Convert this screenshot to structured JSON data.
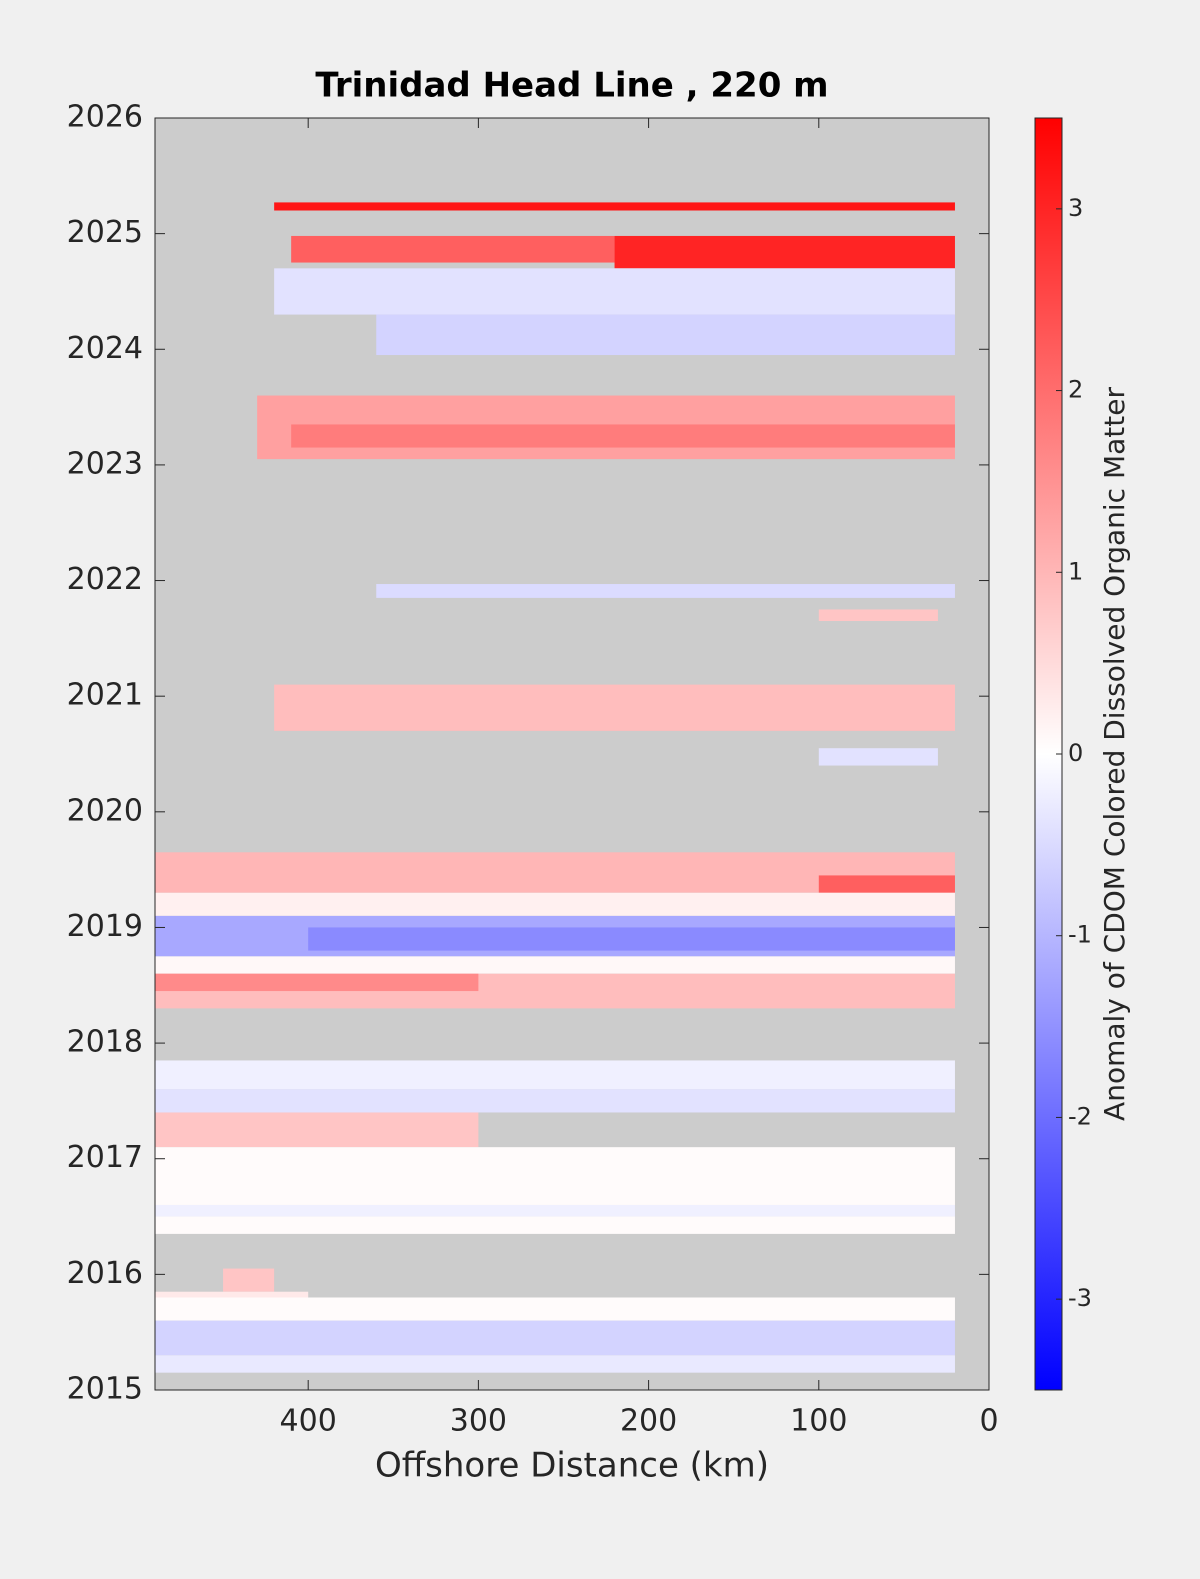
{
  "chart_data": {
    "type": "contour",
    "title": "Trinidad Head Line , 220 m",
    "x_label": "Offshore Distance (km)",
    "colorbar_label": "Anomaly of CDOM Colored Dissolved Organic Matter",
    "xlim": [
      490,
      0
    ],
    "xticks": [
      400,
      300,
      200,
      100,
      0
    ],
    "ylim": [
      2015,
      2026
    ],
    "yticks": [
      2015,
      2016,
      2017,
      2018,
      2019,
      2020,
      2021,
      2022,
      2023,
      2024,
      2025,
      2026
    ],
    "clim": [
      -3.5,
      3.5
    ],
    "cticks": [
      -3,
      -2,
      -1,
      0,
      1,
      2,
      3
    ],
    "colormap": [
      "#0000ff",
      "#ffffff",
      "#ff0000"
    ],
    "nan_color": "#cccccc",
    "patches": [
      {
        "x": [
          420,
          20
        ],
        "y": [
          2025.2,
          2025.27
        ],
        "value": 3.2
      },
      {
        "x": [
          410,
          220
        ],
        "y": [
          2024.75,
          2024.98
        ],
        "value": 2.2
      },
      {
        "x": [
          220,
          20
        ],
        "y": [
          2024.7,
          2024.98
        ],
        "value": 3.0
      },
      {
        "x": [
          420,
          20
        ],
        "y": [
          2024.3,
          2024.7
        ],
        "value": -0.4
      },
      {
        "x": [
          360,
          20
        ],
        "y": [
          2023.95,
          2024.3
        ],
        "value": -0.6
      },
      {
        "x": [
          430,
          20
        ],
        "y": [
          2023.05,
          2023.6
        ],
        "value": 1.3
      },
      {
        "x": [
          410,
          20
        ],
        "y": [
          2023.15,
          2023.35
        ],
        "value": 1.8
      },
      {
        "x": [
          360,
          20
        ],
        "y": [
          2021.85,
          2021.97
        ],
        "value": -0.5
      },
      {
        "x": [
          100,
          30
        ],
        "y": [
          2021.65,
          2021.75
        ],
        "value": 0.8
      },
      {
        "x": [
          420,
          20
        ],
        "y": [
          2020.7,
          2021.1
        ],
        "value": 0.9
      },
      {
        "x": [
          100,
          30
        ],
        "y": [
          2020.4,
          2020.55
        ],
        "value": -0.4
      },
      {
        "x": [
          490,
          20
        ],
        "y": [
          2019.3,
          2019.65
        ],
        "value": 1.0
      },
      {
        "x": [
          100,
          20
        ],
        "y": [
          2019.3,
          2019.45
        ],
        "value": 2.2
      },
      {
        "x": [
          490,
          20
        ],
        "y": [
          2019.1,
          2019.3
        ],
        "value": 0.2
      },
      {
        "x": [
          490,
          20
        ],
        "y": [
          2018.75,
          2019.1
        ],
        "value": -1.2
      },
      {
        "x": [
          400,
          20
        ],
        "y": [
          2018.8,
          2019.0
        ],
        "value": -1.6
      },
      {
        "x": [
          490,
          20
        ],
        "y": [
          2018.6,
          2018.75
        ],
        "value": 0.1
      },
      {
        "x": [
          490,
          20
        ],
        "y": [
          2018.3,
          2018.6
        ],
        "value": 0.9
      },
      {
        "x": [
          490,
          300
        ],
        "y": [
          2018.45,
          2018.6
        ],
        "value": 1.6
      },
      {
        "x": [
          490,
          20
        ],
        "y": [
          2017.6,
          2017.85
        ],
        "value": -0.2
      },
      {
        "x": [
          490,
          20
        ],
        "y": [
          2017.4,
          2017.6
        ],
        "value": -0.4
      },
      {
        "x": [
          490,
          300
        ],
        "y": [
          2017.1,
          2017.4
        ],
        "value": 0.8
      },
      {
        "x": [
          490,
          20
        ],
        "y": [
          2016.6,
          2017.1
        ],
        "value": 0.05
      },
      {
        "x": [
          490,
          20
        ],
        "y": [
          2016.5,
          2016.6
        ],
        "value": -0.2
      },
      {
        "x": [
          490,
          20
        ],
        "y": [
          2016.35,
          2016.5
        ],
        "value": 0.05
      },
      {
        "x": [
          450,
          420
        ],
        "y": [
          2015.85,
          2016.05
        ],
        "value": 0.8
      },
      {
        "x": [
          490,
          400
        ],
        "y": [
          2015.75,
          2015.85
        ],
        "value": 0.3
      },
      {
        "x": [
          490,
          20
        ],
        "y": [
          2015.6,
          2015.8
        ],
        "value": 0.05
      },
      {
        "x": [
          490,
          20
        ],
        "y": [
          2015.3,
          2015.6
        ],
        "value": -0.6
      },
      {
        "x": [
          490,
          20
        ],
        "y": [
          2015.15,
          2015.3
        ],
        "value": -0.3
      }
    ]
  }
}
